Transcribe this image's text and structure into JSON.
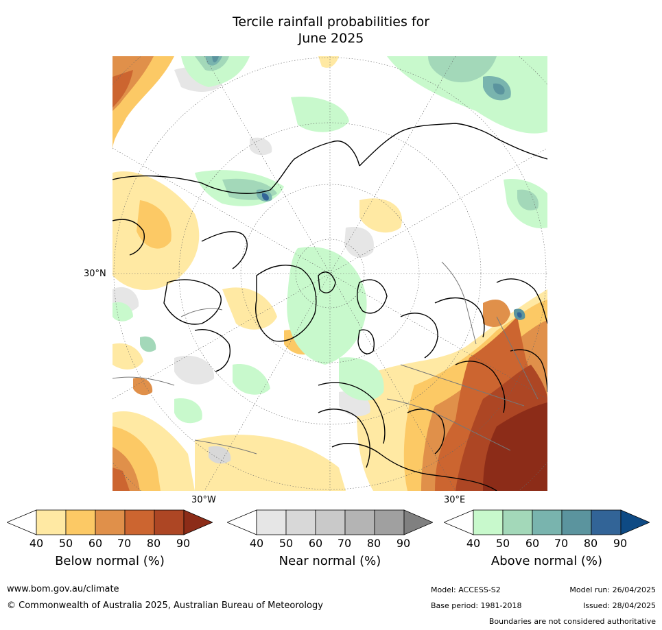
{
  "title_line1": "Tercile rainfall probabilities for",
  "title_line2": "June 2025",
  "map": {
    "lat_label": "30°N",
    "lon_left": "30°W",
    "lon_right": "30°E"
  },
  "colorbars": [
    {
      "label": "Below normal (%)",
      "ticks": [
        "40",
        "50",
        "60",
        "70",
        "80",
        "90"
      ],
      "colors": [
        "#ffffff",
        "#ffe9a3",
        "#fcc965",
        "#e0904a",
        "#cc6530",
        "#ad4624",
        "#8c2c18"
      ]
    },
    {
      "label": "Near normal (%)",
      "ticks": [
        "40",
        "50",
        "60",
        "70",
        "80",
        "90"
      ],
      "colors": [
        "#ffffff",
        "#e6e6e6",
        "#d8d8d8",
        "#c9c9c9",
        "#b4b4b4",
        "#a0a0a0",
        "#808080"
      ]
    },
    {
      "label": "Above normal (%)",
      "ticks": [
        "40",
        "50",
        "60",
        "70",
        "80",
        "90"
      ],
      "colors": [
        "#ffffff",
        "#c8f9cc",
        "#a3d8b9",
        "#79b4ae",
        "#5b949e",
        "#326497",
        "#0e4a84"
      ]
    }
  ],
  "footer": {
    "url": "www.bom.gov.au/climate",
    "copyright": "© Commonwealth of Australia 2025, Australian Bureau of Meteorology",
    "model": "Model: ACCESS-S2",
    "base_period": "Base period: 1981-2018",
    "model_run": "Model run: 26/04/2025",
    "issued": "Issued: 28/04/2025",
    "disclaimer": "Boundaries are not considered authoritative"
  }
}
